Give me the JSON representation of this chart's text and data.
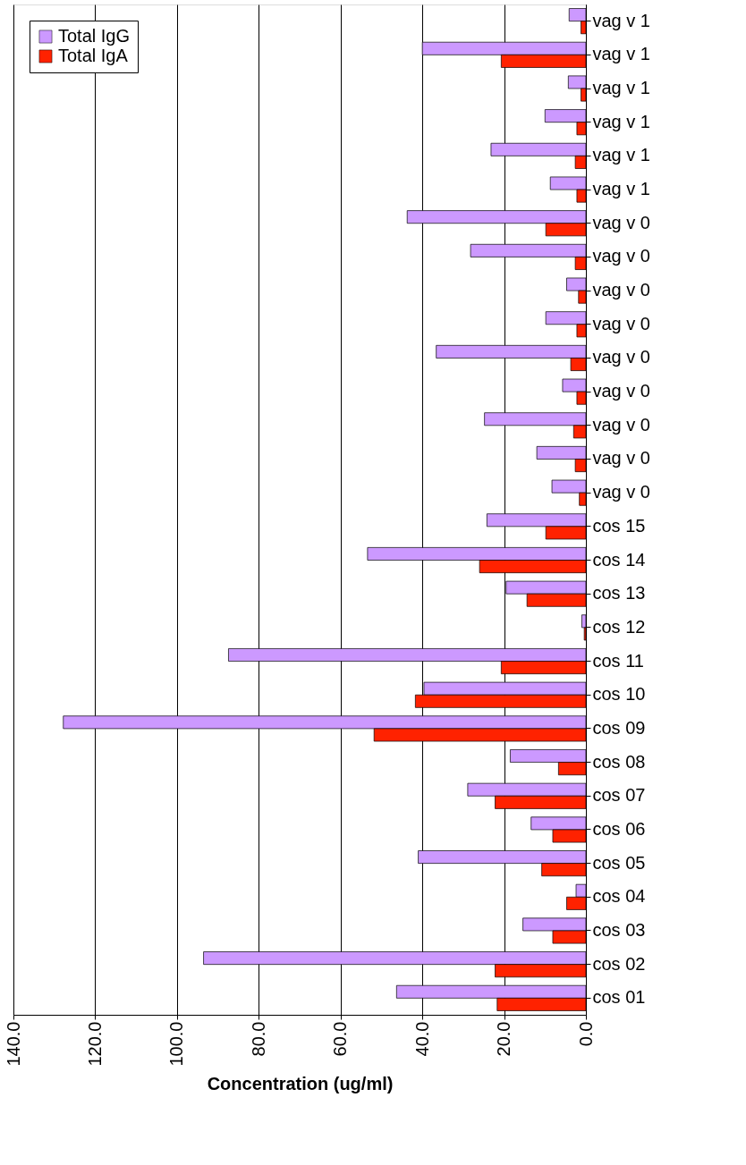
{
  "chart_data": {
    "type": "bar",
    "orientation": "horizontal",
    "categories": [
      "vag v 1",
      "vag v 1",
      "vag v 1",
      "vag v 1",
      "vag v 1",
      "vag v 1",
      "vag v 0",
      "vag v 0",
      "vag v 0",
      "vag v 0",
      "vag v 0",
      "vag v 0",
      "vag v 0",
      "vag v 0",
      "vag v 0",
      "cos 15",
      "cos 14",
      "cos 13",
      "cos 12",
      "cos 11",
      "cos 10",
      "cos 09",
      "cos 08",
      "cos 07",
      "cos 06",
      "cos 05",
      "cos 04",
      "cos 03",
      "cos 02",
      "cos 01"
    ],
    "series": [
      {
        "name": "Total IgG",
        "color": "#cc99ff",
        "values": [
          4.1,
          40.0,
          4.3,
          10.0,
          23.2,
          8.7,
          43.7,
          28.2,
          4.7,
          9.8,
          36.6,
          5.7,
          24.8,
          12.0,
          8.3,
          24.2,
          53.4,
          19.5,
          1.0,
          87.4,
          39.6,
          127.8,
          18.5,
          28.9,
          13.4,
          41.0,
          2.4,
          15.4,
          93.5,
          46.3
        ]
      },
      {
        "name": "Total IgA",
        "color": "#ff2200",
        "values": [
          1.2,
          20.7,
          1.2,
          2.2,
          2.6,
          2.2,
          9.8,
          2.6,
          1.8,
          2.2,
          3.7,
          2.2,
          3.0,
          2.6,
          1.6,
          9.8,
          26.0,
          14.4,
          0.4,
          20.7,
          41.7,
          51.8,
          6.7,
          22.2,
          8.1,
          10.8,
          4.7,
          8.1,
          22.2,
          21.7
        ]
      }
    ],
    "xlabel": "Concentration (ug/ml)",
    "xlim": [
      140,
      0
    ],
    "xticks": [
      {
        "value": 140,
        "label": "140.0"
      },
      {
        "value": 120,
        "label": "120.0"
      },
      {
        "value": 100,
        "label": "100.0"
      },
      {
        "value": 80,
        "label": "80.0"
      },
      {
        "value": 60,
        "label": "60.0"
      },
      {
        "value": 40,
        "label": "40.0"
      },
      {
        "value": 20,
        "label": "20.0"
      },
      {
        "value": 0,
        "label": "0.0"
      }
    ],
    "grid": "x",
    "legend": "top left"
  }
}
